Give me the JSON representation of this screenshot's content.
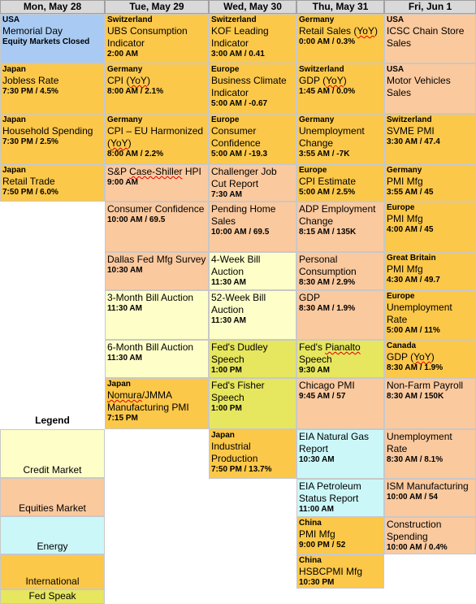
{
  "days": [
    "Mon, May 28",
    "Tue, May 29",
    "Wed, May 30",
    "Thu, May 31",
    "Fri, Jun 1"
  ],
  "legend": {
    "title": "Legend",
    "items": [
      "Credit Market",
      "Equities Market",
      "Energy",
      "International",
      "Fed Speak"
    ]
  },
  "colors": {
    "international": "#fcc84a",
    "equities": "#fbc99e",
    "credit": "#fefec8",
    "energy": "#ccf7f8",
    "fed_speak": "#e6e65f",
    "holiday": "#a9cbf3"
  },
  "columns": [
    [
      {
        "country": "USA",
        "name": "Memorial Day",
        "extra": "Equity Markets Closed",
        "type": "holiday"
      },
      {
        "country": "Japan",
        "name": "Jobless Rate",
        "time": "7:30 PM / 4.5%",
        "type": "international"
      },
      {
        "country": "Japan",
        "name": "Household Spending",
        "time": "7:30 PM / 2.5%",
        "type": "international"
      },
      {
        "country": "Japan",
        "name": "Retail Trade",
        "time": "7:50 PM / 6.0%",
        "type": "international"
      }
    ],
    [
      {
        "country": "Switzerland",
        "name": "UBS Consumption Indicator",
        "time": "2:00 AM",
        "type": "international"
      },
      {
        "country": "Germany",
        "name": "CPI (YoY)",
        "time": "8:00 AM / 2.1%",
        "type": "international"
      },
      {
        "country": "Germany",
        "name": "CPI – EU Harmonized (YoY)",
        "time": "8:00 AM / 2.2%",
        "type": "international"
      },
      {
        "country": "",
        "name": "S&P Case-Shiller HPI",
        "time": "9:00 AM",
        "type": "equities"
      },
      {
        "country": "",
        "name": "Consumer Confidence",
        "time": "10:00 AM / 69.5",
        "type": "equities"
      },
      {
        "country": "",
        "name": "Dallas Fed Mfg Survey",
        "time": "10:30 AM",
        "type": "equities"
      },
      {
        "country": "",
        "name": "3-Month Bill Auction",
        "time": "11:30 AM",
        "type": "credit"
      },
      {
        "country": "",
        "name": "6-Month Bill Auction",
        "time": "11:30 AM",
        "type": "credit"
      },
      {
        "country": "Japan",
        "name": "Nomura/JMMA Manufacturing PMI",
        "time": "7:15 PM",
        "type": "international"
      }
    ],
    [
      {
        "country": "Switzerland",
        "name": "KOF Leading Indicator",
        "time": "3:00 AM / 0.41",
        "type": "international"
      },
      {
        "country": "Europe",
        "name": "Business Climate Indicator",
        "time": "5:00 AM / -0.67",
        "type": "international"
      },
      {
        "country": "Europe",
        "name": "Consumer Confidence",
        "time": "5:00 AM / -19.3",
        "type": "international"
      },
      {
        "country": "",
        "name": "Challenger Job Cut Report",
        "time": "7:30 AM",
        "type": "equities"
      },
      {
        "country": "",
        "name": "Pending Home Sales",
        "time": "10:00 AM / 69.5",
        "type": "equities"
      },
      {
        "country": "",
        "name": "4-Week Bill Auction",
        "time": "11:30 AM",
        "type": "credit"
      },
      {
        "country": "",
        "name": "52-Week Bill Auction",
        "time": "11:30 AM",
        "type": "credit"
      },
      {
        "country": "",
        "name": "Fed's Dudley Speech",
        "time": "1:00 PM",
        "type": "fed_speak"
      },
      {
        "country": "",
        "name": "Fed's Fisher Speech",
        "time": "1:00 PM",
        "type": "fed_speak"
      },
      {
        "country": "Japan",
        "name": "Industrial Production",
        "time": "7:50 PM / 13.7%",
        "type": "international"
      }
    ],
    [
      {
        "country": "Germany",
        "name": "Retail Sales (YoY)",
        "time": "0:00 AM / 0.3%",
        "type": "international"
      },
      {
        "country": "Switzerland",
        "name": "GDP (YoY)",
        "time": "1:45 AM / 0.0%",
        "type": "international"
      },
      {
        "country": "Germany",
        "name": "Unemployment Change",
        "time": "3:55 AM / -7K",
        "type": "international"
      },
      {
        "country": "Europe",
        "name": "CPI Estimate",
        "time": "5:00 AM / 2.5%",
        "type": "international"
      },
      {
        "country": "",
        "name": "ADP Employment Change",
        "time": "8:15 AM / 135K",
        "type": "equities"
      },
      {
        "country": "",
        "name": "Personal Consumption",
        "time": "8:30 AM / 2.9%",
        "type": "equities"
      },
      {
        "country": "",
        "name": "GDP",
        "time": "8:30 AM / 1.9%",
        "type": "equities"
      },
      {
        "country": "",
        "name": "Fed's Pianalto Speech",
        "time": "9:30 AM",
        "type": "fed_speak"
      },
      {
        "country": "",
        "name": "Chicago PMI",
        "time": "9:45 AM / 57",
        "type": "equities"
      },
      {
        "country": "",
        "name": "EIA Natural Gas Report",
        "time": "10:30 AM",
        "type": "energy"
      },
      {
        "country": "",
        "name": "EIA Petroleum Status Report",
        "time": "11:00 AM",
        "type": "energy"
      },
      {
        "country": "China",
        "name": "PMI Mfg",
        "time": "9:00 PM / 52",
        "type": "international"
      },
      {
        "country": "China",
        "name": "HSBCPMI Mfg",
        "time": "10:30 PM",
        "type": "international"
      }
    ],
    [
      {
        "country": "USA",
        "name": "ICSC Chain Store Sales",
        "time": "",
        "type": "equities"
      },
      {
        "country": "USA",
        "name": "Motor Vehicles Sales",
        "time": "",
        "type": "equities"
      },
      {
        "country": "Switzerland",
        "name": "SVME PMI",
        "time": "3:30 AM / 47.4",
        "type": "international"
      },
      {
        "country": "Germany",
        "name": "PMI Mfg",
        "time": "3:55 AM / 45",
        "type": "international"
      },
      {
        "country": "Europe",
        "name": "PMI Mfg",
        "time": "4:00 AM / 45",
        "type": "international"
      },
      {
        "country": "Great Britain",
        "name": "PMI Mfg",
        "time": "4:30 AM / 49.7",
        "type": "international"
      },
      {
        "country": "Europe",
        "name": "Unemployment Rate",
        "time": "5:00 AM / 11%",
        "type": "international"
      },
      {
        "country": "Canada",
        "name": "GDP (YoY)",
        "time": "8:30 AM / 1.9%",
        "type": "international"
      },
      {
        "country": "",
        "name": "Non-Farm Payroll",
        "time": "8:30 AM / 150K",
        "type": "equities"
      },
      {
        "country": "",
        "name": "Unemployment Rate",
        "time": "8:30 AM / 8.1%",
        "type": "equities"
      },
      {
        "country": "",
        "name": "ISM Manufacturing",
        "time": "10:00 AM / 54",
        "type": "equities"
      },
      {
        "country": "",
        "name": "Construction Spending",
        "time": "10:00 AM / 0.4%",
        "type": "equities"
      }
    ]
  ]
}
